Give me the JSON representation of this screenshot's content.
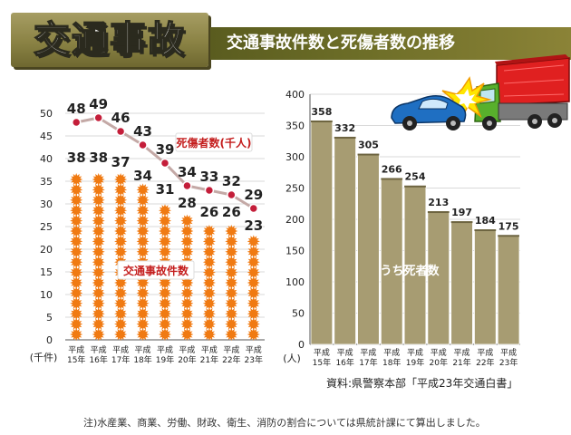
{
  "header": {
    "title": "交通事故",
    "subtitle": "交通事故件数と死傷者数の推移"
  },
  "colors": {
    "accent_bar": "#f07a12",
    "death_bar": "#a79c72",
    "line": "#c4a9a6",
    "marker": "#c41e3a",
    "label_red": "#c41e1e"
  },
  "chart_data": [
    {
      "type": "bar",
      "title": "",
      "ylabel": "(千件)",
      "ylim": [
        0,
        50
      ],
      "yticks": [
        "0",
        "5",
        "10",
        "15",
        "20",
        "25",
        "30",
        "35",
        "40",
        "45",
        "50"
      ],
      "categories": [
        {
          "line1": "平成",
          "line2": "15年"
        },
        {
          "line1": "平成",
          "line2": "16年"
        },
        {
          "line1": "平成",
          "line2": "17年"
        },
        {
          "line1": "平成",
          "line2": "18年"
        },
        {
          "line1": "平成",
          "line2": "19年"
        },
        {
          "line1": "平成",
          "line2": "20年"
        },
        {
          "line1": "平成",
          "line2": "21年"
        },
        {
          "line1": "平成",
          "line2": "22年"
        },
        {
          "line1": "平成",
          "line2": "23年"
        }
      ],
      "series": [
        {
          "name": "交通事故件数",
          "kind": "bar",
          "values": [
            38,
            38,
            37,
            34,
            31,
            28,
            26,
            26,
            23
          ]
        },
        {
          "name": "死傷者数(千人)",
          "kind": "line",
          "values": [
            48,
            49,
            46,
            43,
            39,
            34,
            33,
            32,
            29
          ]
        }
      ]
    },
    {
      "type": "bar",
      "title": "",
      "ylabel": "(人)",
      "ylim": [
        0,
        400
      ],
      "yticks": [
        "0",
        "50",
        "100",
        "150",
        "200",
        "250",
        "300",
        "350",
        "400"
      ],
      "categories": [
        {
          "line1": "平成",
          "line2": "15年"
        },
        {
          "line1": "平成",
          "line2": "16年"
        },
        {
          "line1": "平成",
          "line2": "17年"
        },
        {
          "line1": "平成",
          "line2": "18年"
        },
        {
          "line1": "平成",
          "line2": "19年"
        },
        {
          "line1": "平成",
          "line2": "20年"
        },
        {
          "line1": "平成",
          "line2": "21年"
        },
        {
          "line1": "平成",
          "line2": "22年"
        },
        {
          "line1": "平成",
          "line2": "23年"
        }
      ],
      "series": [
        {
          "name": "うち死者数",
          "kind": "bar",
          "values": [
            358,
            332,
            305,
            266,
            254,
            213,
            197,
            184,
            175
          ]
        }
      ]
    }
  ],
  "source": "資料:県警察本部「平成23年交通白書」",
  "footnote": "注)水産業、商業、労働、財政、衛生、消防の割合については県統計課にて算出しました。"
}
